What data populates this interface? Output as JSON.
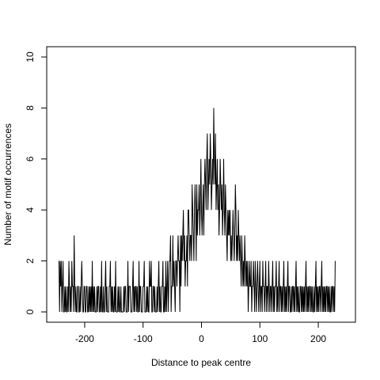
{
  "chart_data": {
    "type": "line",
    "title": "",
    "xlabel": "Distance to peak centre",
    "ylabel": "Number of motif occurrences",
    "xlim": [
      -250,
      250
    ],
    "ylim": [
      0,
      10.5
    ],
    "x_ticks": [
      -200,
      -100,
      0,
      100,
      200
    ],
    "x_tick_labels": [
      "-200",
      "-100",
      "0",
      "100",
      "200"
    ],
    "y_ticks": [
      0,
      2,
      4,
      6,
      8,
      10
    ],
    "y_tick_labels": [
      "0",
      "2",
      "4",
      "6",
      "8",
      "10"
    ],
    "grid": false,
    "legend": "none",
    "x_start": -244,
    "x_step": 1,
    "line_color": "#000000",
    "series": [
      {
        "values": [
          2,
          0,
          2,
          1,
          2,
          0,
          1,
          2,
          0,
          0,
          1,
          0,
          1,
          0,
          0,
          1,
          0,
          2,
          1,
          0,
          1,
          0,
          2,
          1,
          1,
          0,
          3,
          1,
          0,
          1,
          0,
          0,
          1,
          1,
          0,
          0,
          1,
          0,
          1,
          2,
          1,
          0,
          0,
          1,
          1,
          0,
          0,
          1,
          1,
          0,
          0,
          1,
          0,
          1,
          0,
          1,
          0,
          2,
          0,
          1,
          0,
          1,
          0,
          0,
          0,
          1,
          0,
          1,
          1,
          0,
          0,
          1,
          0,
          2,
          0,
          0,
          1,
          0,
          0,
          1,
          2,
          0,
          1,
          0,
          0,
          0,
          1,
          1,
          2,
          0,
          1,
          0,
          1,
          0,
          0,
          1,
          0,
          2,
          0,
          0,
          0,
          1,
          0,
          1,
          0,
          0,
          1,
          0,
          0,
          0,
          0,
          1,
          0,
          1,
          1,
          0,
          0,
          0,
          2,
          0,
          1,
          1,
          1,
          0,
          0,
          0,
          1,
          2,
          0,
          1,
          0,
          1,
          1,
          0,
          1,
          0,
          0,
          2,
          0,
          1,
          1,
          0,
          0,
          0,
          1,
          1,
          2,
          0,
          0,
          0,
          1,
          0,
          1,
          0,
          0,
          2,
          1,
          1,
          2,
          0,
          0,
          1,
          1,
          0,
          1,
          0,
          0,
          0,
          1,
          0,
          1,
          2,
          0,
          1,
          0,
          0,
          1,
          1,
          2,
          0,
          0,
          1,
          0,
          2,
          0,
          1,
          2,
          0,
          1,
          2,
          2,
          3,
          0,
          1,
          1,
          3,
          1,
          2,
          1,
          0,
          2,
          2,
          1,
          2,
          3,
          2,
          2,
          0,
          3,
          1,
          3,
          2,
          3,
          4,
          2,
          3,
          1,
          2,
          2,
          3,
          1,
          4,
          4,
          3,
          2,
          3,
          3,
          2,
          5,
          4,
          3,
          2,
          4,
          5,
          4,
          2,
          5,
          3,
          4,
          4,
          5,
          3,
          4,
          6,
          4,
          3,
          4,
          5,
          3,
          5,
          6,
          5,
          4,
          6,
          7,
          4,
          5,
          6,
          5,
          7,
          6,
          4,
          5,
          6,
          5,
          8,
          6,
          5,
          7,
          4,
          5,
          6,
          4,
          5,
          3,
          4,
          6,
          5,
          4,
          5,
          3,
          4,
          6,
          4,
          3,
          5,
          4,
          3,
          2,
          4,
          3,
          4,
          3,
          4,
          2,
          3,
          2,
          3,
          4,
          3,
          2,
          3,
          5,
          4,
          2,
          3,
          2,
          4,
          3,
          2,
          3,
          2,
          1,
          3,
          2,
          1,
          2,
          1,
          3,
          2,
          1,
          2,
          1,
          2,
          0,
          1,
          2,
          1,
          1,
          2,
          0,
          1,
          1,
          2,
          1,
          0,
          2,
          1,
          0,
          1,
          2,
          1,
          0,
          1,
          2,
          0,
          1,
          1,
          0,
          2,
          1,
          1,
          0,
          1,
          2,
          0,
          1,
          1,
          0,
          2,
          1,
          0,
          1,
          1,
          0,
          1,
          2,
          0,
          1,
          0,
          1,
          1,
          2,
          0,
          1,
          0,
          1,
          2,
          0,
          1,
          1,
          0,
          1,
          0,
          1,
          2,
          0,
          1,
          0,
          1,
          0,
          1,
          2,
          0,
          1,
          1,
          0,
          0,
          1,
          0,
          1,
          1,
          0,
          1,
          0,
          1,
          2,
          0,
          1,
          0,
          1,
          0,
          0,
          1,
          1,
          0,
          1,
          0,
          1,
          0,
          1,
          0,
          1,
          2,
          0,
          1,
          0,
          1,
          0,
          1,
          1,
          0,
          1,
          0,
          1,
          0,
          0,
          1,
          0,
          1,
          2,
          0,
          1,
          0,
          1,
          0,
          1,
          1,
          0,
          1,
          2,
          0,
          1,
          0,
          1,
          0,
          1,
          0,
          1,
          1,
          0,
          1,
          0,
          1,
          0,
          0,
          1,
          0,
          1,
          1,
          0,
          1,
          0,
          2
        ]
      }
    ]
  }
}
